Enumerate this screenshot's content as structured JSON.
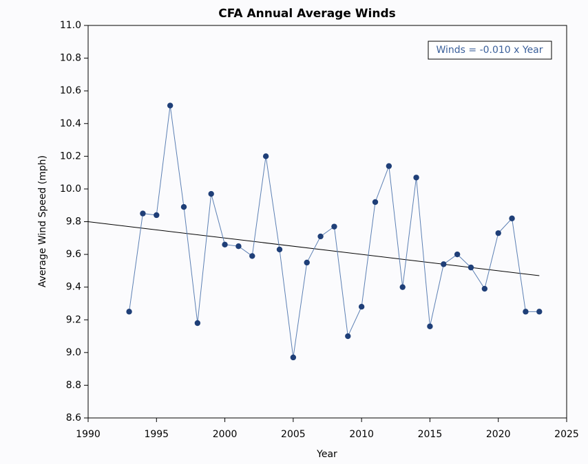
{
  "chart_data": {
    "type": "line",
    "title": "CFA Annual Average Winds",
    "x_label": "Year",
    "y_label": "Average Wind Speed (mph)",
    "annotation": "Winds = -0.010 x Year",
    "x": [
      1993,
      1994,
      1995,
      1996,
      1997,
      1998,
      1999,
      2000,
      2001,
      2002,
      2003,
      2004,
      2005,
      2006,
      2007,
      2008,
      2009,
      2010,
      2011,
      2012,
      2013,
      2014,
      2015,
      2016,
      2017,
      2018,
      2019,
      2020,
      2021,
      2022,
      2023
    ],
    "series": [
      {
        "color": "#5b7fb3",
        "marker_color": "#1f3f78",
        "values": [
          9.25,
          9.85,
          9.84,
          10.51,
          9.89,
          9.18,
          9.97,
          9.66,
          9.65,
          9.59,
          10.2,
          9.63,
          8.97,
          9.55,
          9.71,
          9.77,
          9.1,
          9.28,
          9.92,
          10.14,
          9.4,
          10.07,
          9.16,
          9.54,
          9.6,
          9.52,
          9.39,
          9.73,
          9.82,
          9.25,
          9.25
        ]
      }
    ],
    "trendline": {
      "color": "#000000",
      "x": [
        1990,
        2023
      ],
      "values": [
        9.8,
        9.47
      ]
    },
    "xlim": [
      1990,
      2025
    ],
    "xticks": [
      1990,
      1995,
      2000,
      2005,
      2010,
      2015,
      2020,
      2025
    ],
    "ylim": [
      8.6,
      11.0
    ],
    "yticks": [
      8.6,
      8.8,
      {
        "value": 9,
        "label": "9.0"
      },
      9.2,
      9.4,
      9.6,
      9.8,
      {
        "value": 10,
        "label": "10.0"
      },
      10.2,
      10.4,
      10.6,
      10.8,
      {
        "value": 11,
        "label": "11.0"
      }
    ],
    "grid": false
  }
}
